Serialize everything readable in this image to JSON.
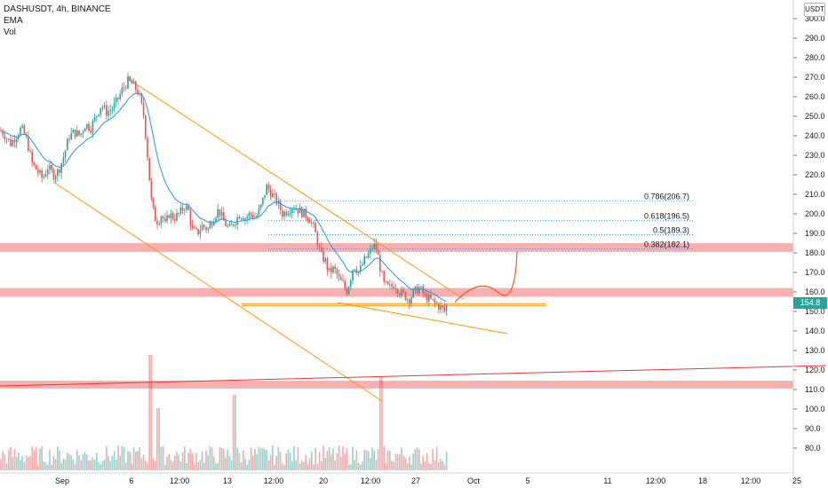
{
  "legend": {
    "symbol": "DASHUSDT, 4h, BINANCE",
    "indicator_ema": "EMA",
    "indicator_vol": "Vol"
  },
  "currency_label": "USDT",
  "last_price": "154.8",
  "colors": {
    "up": "#26a69a",
    "down": "#ef5350",
    "ema": "#2196f3",
    "channel": "#ff9800",
    "zone": "#f7a1a1",
    "trend": "#e53935",
    "projection": "#ff5722",
    "fib": "#2196f3",
    "price_tag": "#26a69a"
  },
  "chart_data": {
    "type": "candlestick",
    "y_axis": {
      "ticks": [
        300,
        290,
        280,
        270,
        260,
        250,
        240,
        230,
        220,
        210,
        200,
        190,
        180,
        170,
        160,
        150,
        140,
        130,
        120,
        110,
        100,
        90,
        80
      ],
      "labels": [
        "300.0",
        "290.0",
        "280.0",
        "270.0",
        "260.0",
        "250.0",
        "240.0",
        "230.0",
        "220.0",
        "210.0",
        "200.0",
        "190.0",
        "180.0",
        "170.0",
        "160.0",
        "150.0",
        "140.0",
        "130.0",
        "120.0",
        "110.0",
        "100.0",
        "90.0",
        "80.0"
      ]
    },
    "x_axis": {
      "labels": [
        "Sep",
        "6",
        "12:00",
        "13",
        "12:00",
        "20",
        "12:00",
        "27",
        "Oct",
        "5",
        "11",
        "12:00",
        "18",
        "12:00",
        "25"
      ]
    },
    "fib_levels": [
      {
        "label": "0.786(206.7)",
        "value": 206.7
      },
      {
        "label": "0.618(196.5)",
        "value": 196.5
      },
      {
        "label": "0.5(189.3)",
        "value": 189.3
      },
      {
        "label": "0.382(182.1)",
        "value": 182.1
      }
    ],
    "zones": [
      {
        "from": 180.5,
        "to": 185
      },
      {
        "from": 157.5,
        "to": 162
      },
      {
        "from": 110.5,
        "to": 114.5
      }
    ],
    "support_line": {
      "value": 153.5
    },
    "price_path": [
      [
        0,
        243
      ],
      [
        6,
        240
      ],
      [
        12,
        236
      ],
      [
        18,
        240
      ],
      [
        24,
        244
      ],
      [
        30,
        238
      ],
      [
        36,
        226
      ],
      [
        42,
        222
      ],
      [
        48,
        218
      ],
      [
        54,
        224
      ],
      [
        60,
        220
      ],
      [
        66,
        222
      ],
      [
        72,
        230
      ],
      [
        78,
        240
      ],
      [
        84,
        242
      ],
      [
        90,
        240
      ],
      [
        96,
        246
      ],
      [
        102,
        244
      ],
      [
        108,
        250
      ],
      [
        114,
        256
      ],
      [
        120,
        252
      ],
      [
        126,
        254
      ],
      [
        132,
        258
      ],
      [
        138,
        264
      ],
      [
        144,
        268
      ],
      [
        150,
        266
      ],
      [
        156,
        262
      ],
      [
        162,
        250
      ],
      [
        166,
        230
      ],
      [
        170,
        208
      ],
      [
        174,
        198
      ],
      [
        178,
        196
      ],
      [
        182,
        200
      ],
      [
        186,
        194
      ],
      [
        190,
        200
      ],
      [
        196,
        198
      ],
      [
        202,
        200
      ],
      [
        208,
        204
      ],
      [
        212,
        202
      ],
      [
        216,
        192
      ],
      [
        222,
        190
      ],
      [
        228,
        194
      ],
      [
        234,
        192
      ],
      [
        240,
        198
      ],
      [
        246,
        202
      ],
      [
        252,
        196
      ],
      [
        258,
        192
      ],
      [
        264,
        196
      ],
      [
        270,
        200
      ],
      [
        276,
        198
      ],
      [
        282,
        200
      ],
      [
        288,
        198
      ],
      [
        294,
        204
      ],
      [
        300,
        214
      ],
      [
        306,
        210
      ],
      [
        312,
        206
      ],
      [
        318,
        200
      ],
      [
        324,
        202
      ],
      [
        330,
        204
      ],
      [
        336,
        202
      ],
      [
        342,
        200
      ],
      [
        348,
        198
      ],
      [
        354,
        192
      ],
      [
        358,
        184
      ],
      [
        362,
        178
      ],
      [
        366,
        176
      ],
      [
        370,
        170
      ],
      [
        376,
        172
      ],
      [
        382,
        166
      ],
      [
        386,
        164
      ],
      [
        390,
        160
      ],
      [
        394,
        166
      ],
      [
        398,
        174
      ],
      [
        404,
        170
      ],
      [
        410,
        176
      ],
      [
        416,
        180
      ],
      [
        420,
        184
      ],
      [
        424,
        182
      ],
      [
        428,
        172
      ],
      [
        432,
        164
      ],
      [
        438,
        162
      ],
      [
        444,
        164
      ],
      [
        450,
        160
      ],
      [
        456,
        158
      ],
      [
        460,
        156
      ],
      [
        466,
        160
      ],
      [
        472,
        162
      ],
      [
        478,
        158
      ],
      [
        484,
        156
      ],
      [
        490,
        154
      ],
      [
        496,
        152
      ],
      [
        500,
        150
      ],
      [
        504,
        154.8
      ]
    ],
    "projection_path": [
      [
        512,
        154.8
      ],
      [
        540,
        168
      ],
      [
        560,
        160
      ],
      [
        582,
        181
      ]
    ]
  }
}
